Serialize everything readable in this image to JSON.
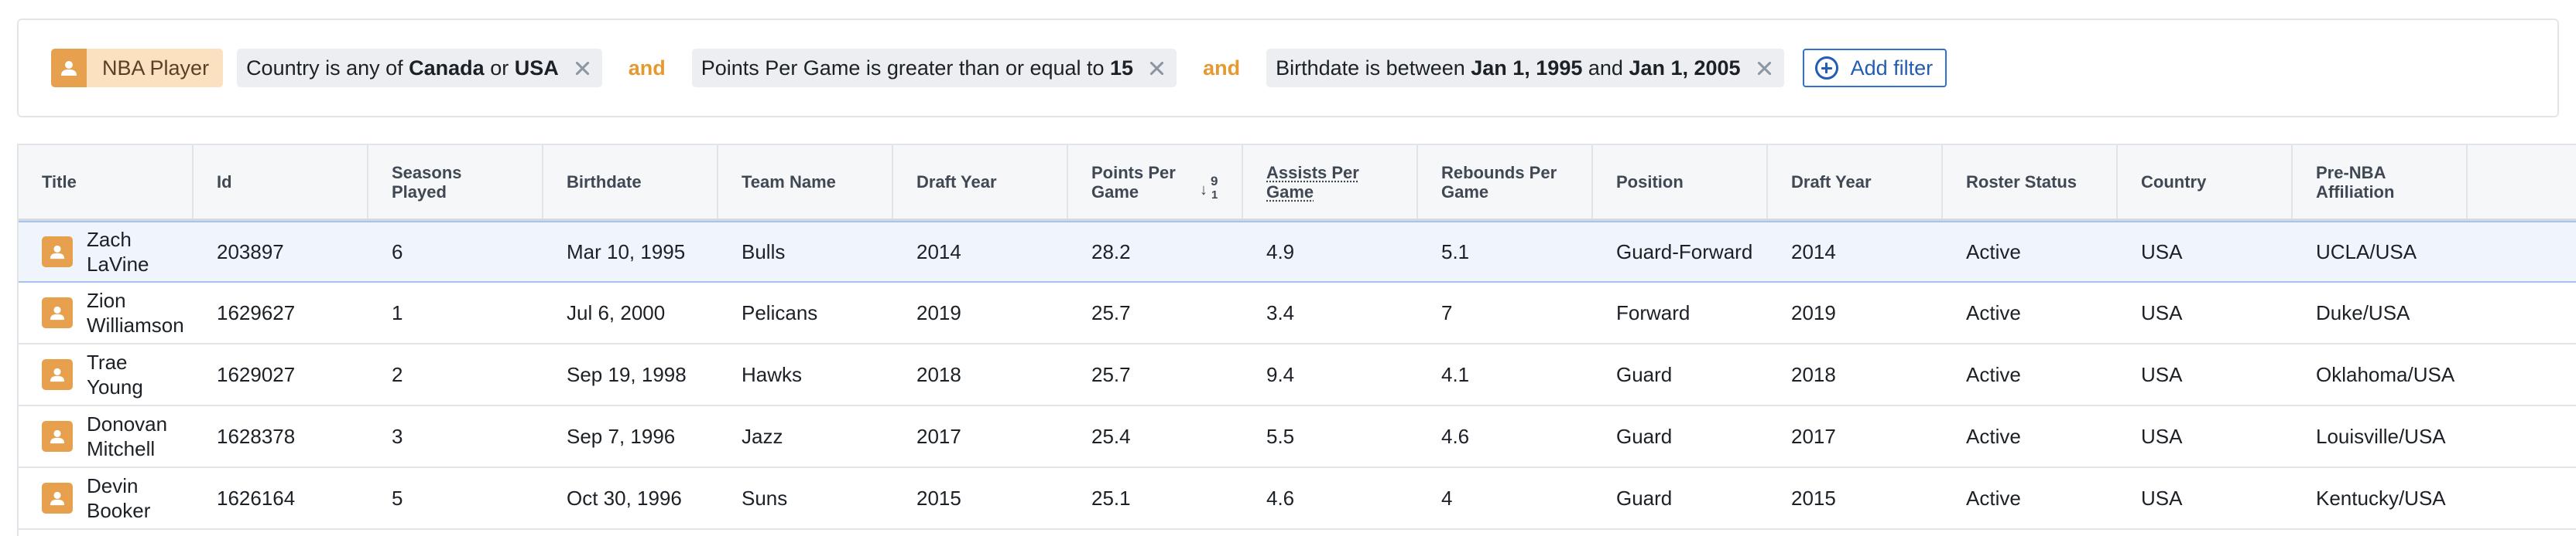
{
  "filters": {
    "object_type": {
      "label": "NBA Player",
      "icon": "person-icon"
    },
    "connector": "and",
    "items": [
      {
        "parts": [
          {
            "t": "Country is any of "
          },
          {
            "b": "Canada"
          },
          {
            "t": " or "
          },
          {
            "b": "USA"
          }
        ]
      },
      {
        "parts": [
          {
            "t": "Points Per Game is greater than or equal to "
          },
          {
            "b": "15"
          }
        ]
      },
      {
        "parts": [
          {
            "t": "Birthdate is between "
          },
          {
            "b": "Jan 1, 1995"
          },
          {
            "t": " and "
          },
          {
            "b": "Jan 1, 2005"
          }
        ]
      }
    ],
    "add_filter_label": "Add filter"
  },
  "table": {
    "columns": [
      {
        "key": "title",
        "label": "Title"
      },
      {
        "key": "id",
        "label": "Id"
      },
      {
        "key": "seasons",
        "label": "Seasons Played"
      },
      {
        "key": "birthdate",
        "label": "Birthdate"
      },
      {
        "key": "team",
        "label": "Team Name"
      },
      {
        "key": "draft1",
        "label": "Draft Year"
      },
      {
        "key": "ppg",
        "label": "Points Per Game",
        "sort": {
          "direction": "desc",
          "top": "9",
          "bottom": "1"
        }
      },
      {
        "key": "apg",
        "label": "Assists Per Game"
      },
      {
        "key": "rpg",
        "label": "Rebounds Per Game"
      },
      {
        "key": "position",
        "label": "Position"
      },
      {
        "key": "draft2",
        "label": "Draft Year"
      },
      {
        "key": "roster",
        "label": "Roster Status"
      },
      {
        "key": "country",
        "label": "Country"
      },
      {
        "key": "prenba",
        "label": "Pre-NBA Affiliation"
      }
    ],
    "rows": [
      {
        "title": "Zach LaVine",
        "id": "203897",
        "seasons": "6",
        "birthdate": "Mar 10, 1995",
        "team": "Bulls",
        "draft1": "2014",
        "ppg": "28.2",
        "apg": "4.9",
        "rpg": "5.1",
        "position": "Guard-Forward",
        "draft2": "2014",
        "roster": "Active",
        "country": "USA",
        "prenba": "UCLA/USA",
        "selected": true
      },
      {
        "title": "Zion Williamson",
        "id": "1629627",
        "seasons": "1",
        "birthdate": "Jul 6, 2000",
        "team": "Pelicans",
        "draft1": "2019",
        "ppg": "25.7",
        "apg": "3.4",
        "rpg": "7",
        "position": "Forward",
        "draft2": "2019",
        "roster": "Active",
        "country": "USA",
        "prenba": "Duke/USA"
      },
      {
        "title": "Trae Young",
        "id": "1629027",
        "seasons": "2",
        "birthdate": "Sep 19, 1998",
        "team": "Hawks",
        "draft1": "2018",
        "ppg": "25.7",
        "apg": "9.4",
        "rpg": "4.1",
        "position": "Guard",
        "draft2": "2018",
        "roster": "Active",
        "country": "USA",
        "prenba": "Oklahoma/USA"
      },
      {
        "title": "Donovan Mitchell",
        "id": "1628378",
        "seasons": "3",
        "birthdate": "Sep 7, 1996",
        "team": "Jazz",
        "draft1": "2017",
        "ppg": "25.4",
        "apg": "5.5",
        "rpg": "4.6",
        "position": "Guard",
        "draft2": "2017",
        "roster": "Active",
        "country": "USA",
        "prenba": "Louisville/USA"
      },
      {
        "title": "Devin Booker",
        "id": "1626164",
        "seasons": "5",
        "birthdate": "Oct 30, 1996",
        "team": "Suns",
        "draft1": "2015",
        "ppg": "25.1",
        "apg": "4.6",
        "rpg": "4",
        "position": "Guard",
        "draft2": "2015",
        "roster": "Active",
        "country": "USA",
        "prenba": "Kentucky/USA"
      }
    ],
    "row_icon": "person-icon"
  },
  "colors": {
    "object_accent": "#e6a04e",
    "connector": "#e59a2f",
    "link": "#215db0"
  }
}
